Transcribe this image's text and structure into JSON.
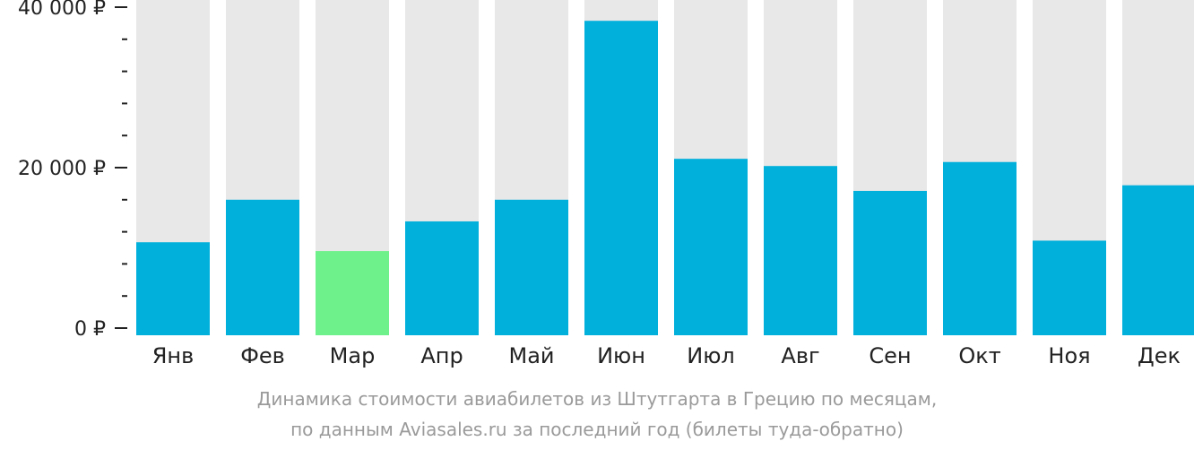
{
  "chart_data": {
    "type": "bar",
    "categories": [
      "Янв",
      "Фев",
      "Мар",
      "Апр",
      "Май",
      "Июн",
      "Июл",
      "Авг",
      "Сен",
      "Окт",
      "Ноя",
      "Дек"
    ],
    "values": [
      10700,
      16000,
      9600,
      13300,
      16000,
      38300,
      21100,
      20200,
      17100,
      20700,
      10900,
      17800
    ],
    "ylim": [
      0,
      40000
    ],
    "yticks": [
      0,
      20000,
      40000
    ],
    "ytick_labels": [
      "0 ₽",
      "20 000 ₽",
      "40 000 ₽"
    ],
    "minor_ticks_per_interval": 5,
    "highlight_index": 2,
    "colors": {
      "bar": "#02b0dc",
      "highlight": "#6ef18a",
      "background_bar": "#e8e8e8",
      "axis": "#222222"
    },
    "caption_lines": [
      "Динамика стоимости авиабилетов из Штутгарта в Грецию по месяцам,",
      "по данным Aviasales.ru за последний год (билеты туда-обратно)"
    ],
    "grid": false,
    "legend": "none"
  }
}
